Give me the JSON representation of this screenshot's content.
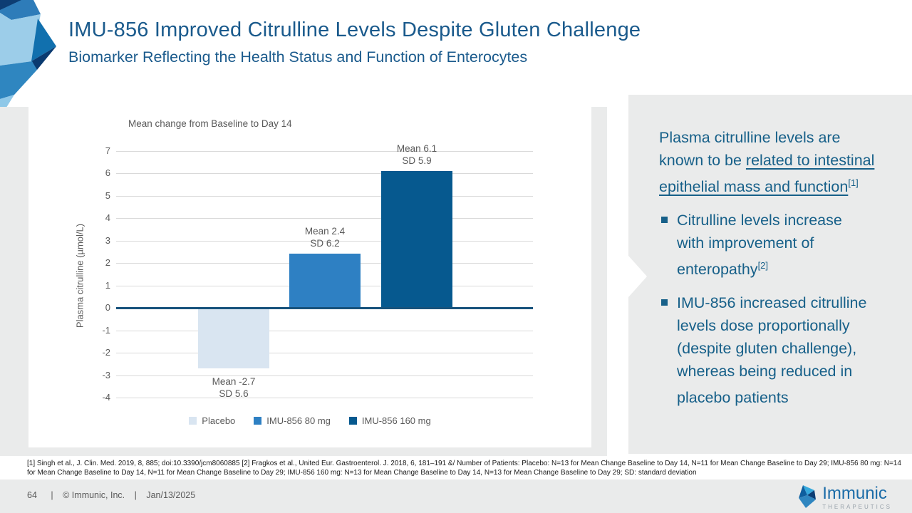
{
  "slide": {
    "title": "IMU-856 Improved Citrulline Levels Despite Gluten Challenge",
    "subtitle": "Biomarker Reflecting the Health Status and Function of Enterocytes"
  },
  "colors": {
    "title_blue": "#1A5A8C",
    "panel_text_blue": "#176089",
    "panel_gray": "#EAEBEB",
    "grid_gray": "#D9D9D9",
    "label_gray": "#595959",
    "zero_line": "#17527C",
    "bar_placebo": "#D9E5F1",
    "bar_80mg": "#2E80C3",
    "bar_160mg": "#06598F"
  },
  "chart_data": {
    "type": "bar",
    "title": "Mean change from Baseline to Day 14",
    "xlabel": "",
    "ylabel": "Plasma citrulline (µmol/L)",
    "ylim": [
      -4,
      7
    ],
    "ytick_step": 1,
    "grid": true,
    "legend_position": "bottom",
    "categories": [
      "Placebo",
      "IMU-856 80 mg",
      "IMU-856 160 mg"
    ],
    "values": [
      -2.7,
      2.4,
      6.1
    ],
    "series": [
      {
        "name": "Placebo",
        "mean": -2.7,
        "sd": 5.6,
        "label_mean": "Mean -2.7",
        "label_sd": "SD 5.6",
        "color": "#D9E5F1"
      },
      {
        "name": "IMU-856 80 mg",
        "mean": 2.4,
        "sd": 6.2,
        "label_mean": "Mean 2.4",
        "label_sd": "SD 6.2",
        "color": "#2E80C3"
      },
      {
        "name": "IMU-856 160 mg",
        "mean": 6.1,
        "sd": 5.9,
        "label_mean": "Mean 6.1",
        "label_sd": "SD 5.9",
        "color": "#06598F"
      }
    ]
  },
  "panel": {
    "intro": {
      "text": "Plasma citrulline levels are known to be ",
      "underlined": "related to intestinal epithelial mass and function",
      "citation": "[1]"
    },
    "bullets": [
      {
        "text": "Citrulline levels increase with improvement of enteropathy",
        "citation": "[2]"
      },
      {
        "text": "IMU-856 increased citrulline levels dose proportionally (despite gluten challenge), whereas being reduced in placebo patients",
        "citation": ""
      }
    ]
  },
  "footnote": {
    "line1": "[1] Singh et al., J. Clin. Med. 2019, 8, 885; doi:10.3390/jcm8060885 [2] Fragkos et al., United Eur. Gastroenterol. J. 2018, 6, 181–191 &/ Number of Patients: Placebo: N=13 for Mean Change Baseline to Day 14, N=11 for Mean Change Baseline to Day 29; IMU-856 80 mg: N=14",
    "line2": "for Mean Change Baseline to Day 14, N=11 for Mean Change Baseline to Day 29; IMU-856 160 mg: N=13 for Mean Change Baseline to Day 14, N=13 for Mean Change Baseline to Day 29; SD: standard deviation"
  },
  "footer": {
    "page_number": "64",
    "separator": "|",
    "copyright": "© Immunic, Inc.",
    "date": "Jan/13/2025",
    "logo_name": "Immunic",
    "logo_tagline": "THERAPEUTICS"
  }
}
